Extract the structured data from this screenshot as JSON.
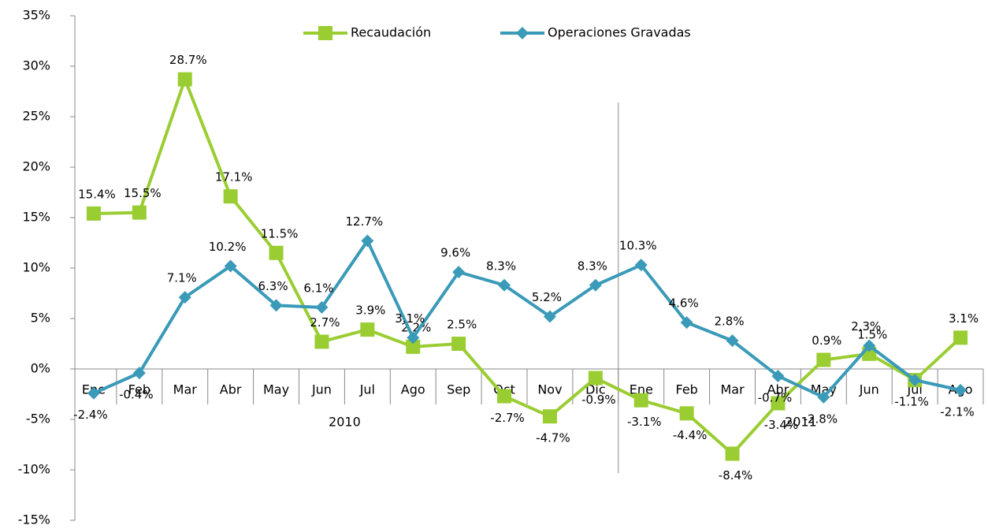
{
  "chart_data": {
    "type": "line",
    "groups": [
      {
        "label": "2010",
        "categories": [
          "Ene",
          "Feb",
          "Mar",
          "Abr",
          "May",
          "Jun",
          "Jul",
          "Ago",
          "Sep",
          "Oct",
          "Nov",
          "Dic"
        ]
      },
      {
        "label": "2011",
        "categories": [
          "Ene",
          "Feb",
          "Mar",
          "Abr",
          "May",
          "Jun",
          "Jul",
          "Ago"
        ]
      }
    ],
    "series": [
      {
        "name": "Recaudación",
        "color": "#9acd32",
        "marker": "square",
        "values": [
          15.4,
          15.5,
          28.7,
          17.1,
          11.5,
          2.7,
          3.9,
          2.2,
          2.5,
          -2.7,
          -4.7,
          -0.9,
          -3.1,
          -4.4,
          -8.4,
          -3.4,
          0.9,
          1.5,
          -1.1,
          3.1
        ],
        "value_labels": [
          "15.4%",
          "15.5%",
          "28.7%",
          "17.1%",
          "11.5%",
          "2.7%",
          "3.9%",
          "2.2%",
          "2.5%",
          "-2.7%",
          "-4.7%",
          "-0.9%",
          "-3.1%",
          "-4.4%",
          "-8.4%",
          "-3.4%",
          "0.9%",
          "1.5%",
          null,
          "3.1%"
        ]
      },
      {
        "name": "Operaciones Gravadas",
        "color": "#3a9ab8",
        "marker": "diamond",
        "values": [
          -2.4,
          -0.4,
          7.1,
          10.2,
          6.3,
          6.1,
          12.7,
          3.1,
          9.6,
          8.3,
          5.2,
          8.3,
          10.3,
          4.6,
          2.8,
          -0.7,
          -2.8,
          2.3,
          -1.1,
          -2.1
        ],
        "value_labels": [
          "-2.4%",
          "-0.4%",
          "7.1%",
          "10.2%",
          "6.3%",
          "6.1%",
          "12.7%",
          "3.1%",
          "9.6%",
          "8.3%",
          "5.2%",
          "8.3%",
          "10.3%",
          "4.6%",
          "2.8%",
          "-0.7%",
          "-2.8%",
          "2.3%",
          "-1.1%",
          "-2.1%"
        ]
      }
    ],
    "ylim": [
      -15,
      35
    ],
    "yticks": [
      {
        "value": -15,
        "label": "-15%"
      },
      {
        "value": -10,
        "label": "-10%"
      },
      {
        "value": -5,
        "label": "-5%"
      },
      {
        "value": 0,
        "label": "0%"
      },
      {
        "value": 5,
        "label": "5%"
      },
      {
        "value": 10,
        "label": "10%"
      },
      {
        "value": 15,
        "label": "15%"
      },
      {
        "value": 20,
        "label": "20%"
      },
      {
        "value": 25,
        "label": "25%"
      },
      {
        "value": 30,
        "label": "30%"
      },
      {
        "value": 35,
        "label": "35%"
      }
    ],
    "legend": "top"
  }
}
